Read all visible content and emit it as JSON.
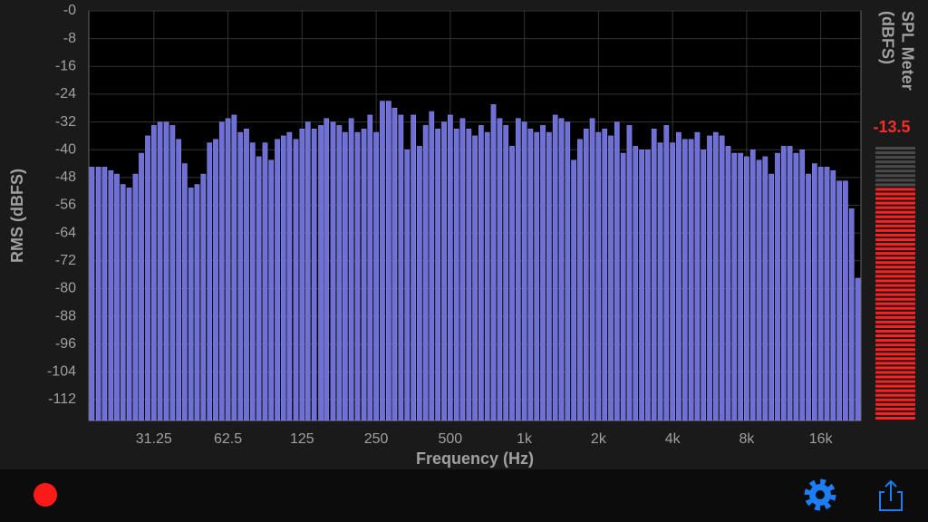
{
  "chart_data": {
    "type": "bar",
    "y_label": "RMS (dBFS)",
    "x_label": "Frequency (Hz)",
    "xscale": "log",
    "grid": true,
    "color": "#6f6fd8",
    "xlim": [
      17,
      23300
    ],
    "ylim": [
      -118,
      0
    ],
    "xticks": [
      31.25,
      62.5,
      125,
      250,
      500,
      {
        "value": 1000,
        "label": "1k"
      },
      {
        "value": 2000,
        "label": "2k"
      },
      {
        "value": 4000,
        "label": "4k"
      },
      {
        "value": 8000,
        "label": "8k"
      },
      {
        "value": 16000,
        "label": "16k"
      }
    ],
    "yticks": [
      {
        "value": 0,
        "label": "-0"
      },
      -8,
      -16,
      -24,
      -32,
      -40,
      -48,
      -56,
      -64,
      -72,
      -80,
      -88,
      -96,
      -104,
      -112
    ],
    "x": [
      17.5,
      18.6,
      19.7,
      20.9,
      22.1,
      23.4,
      24.8,
      26.3,
      27.8,
      29.5,
      31.25,
      33.1,
      35.1,
      37.2,
      39.4,
      41.7,
      44.2,
      46.8,
      49.6,
      52.6,
      55.7,
      59.0,
      62.5,
      66.2,
      70.2,
      74.3,
      78.7,
      83.4,
      88.4,
      93.6,
      99.2,
      105,
      111,
      118,
      125,
      132,
      140,
      149,
      157,
      167,
      177,
      187,
      198,
      210,
      223,
      236,
      250,
      265,
      281,
      297,
      315,
      334,
      354,
      375,
      397,
      420,
      445,
      472,
      500,
      530,
      561,
      595,
      630,
      667,
      707,
      749,
      794,
      841,
      891,
      944,
      1000,
      1059,
      1122,
      1189,
      1260,
      1335,
      1414,
      1498,
      1587,
      1682,
      1782,
      1888,
      2000,
      2119,
      2245,
      2378,
      2520,
      2670,
      2828,
      2997,
      3175,
      3364,
      3564,
      3775,
      4000,
      4238,
      4490,
      4757,
      5040,
      5339,
      5657,
      5993,
      6350,
      6727,
      7127,
      7551,
      8000,
      8476,
      8980,
      9514,
      10079,
      10679,
      11314,
      11986,
      12699,
      13454,
      14254,
      15102,
      16000,
      16951,
      17959,
      19027,
      20159,
      21357,
      22627
    ],
    "values": [
      -45,
      -45,
      -45,
      -46,
      -47,
      -50,
      -51,
      -47,
      -41,
      -36,
      -33,
      -32,
      -32,
      -33,
      -37,
      -44,
      -51,
      -50,
      -47,
      -38,
      -37,
      -32,
      -31,
      -30,
      -35,
      -34,
      -38,
      -42,
      -38,
      -43,
      -37,
      -36,
      -35,
      -37,
      -34,
      -32,
      -34,
      -33,
      -31,
      -32,
      -33,
      -35,
      -31,
      -35,
      -34,
      -30,
      -35,
      -26,
      -26,
      -28,
      -30,
      -40,
      -30,
      -39,
      -33,
      -29,
      -34,
      -32,
      -30,
      -34,
      -31,
      -34,
      -36,
      -33,
      -35,
      -27,
      -31,
      -33,
      -39,
      -31,
      -32,
      -34,
      -35,
      -33,
      -35,
      -30,
      -31,
      -32,
      -43,
      -37,
      -34,
      -31,
      -35,
      -34,
      -36,
      -32,
      -41,
      -33,
      -39,
      -40,
      -40,
      -34,
      -38,
      -33,
      -38,
      -35,
      -37,
      -37,
      -35,
      -40,
      -36,
      -35,
      -36,
      -39,
      -41,
      -41,
      -42,
      -40,
      -43,
      -42,
      -47,
      -41,
      -39,
      -39,
      -41,
      -40,
      -47,
      -44,
      -45,
      -45,
      -46,
      -49,
      -49,
      -57,
      -77
    ]
  },
  "meter": {
    "title": [
      "SPL Meter",
      "(dBFS)"
    ],
    "value": "-13.5"
  }
}
